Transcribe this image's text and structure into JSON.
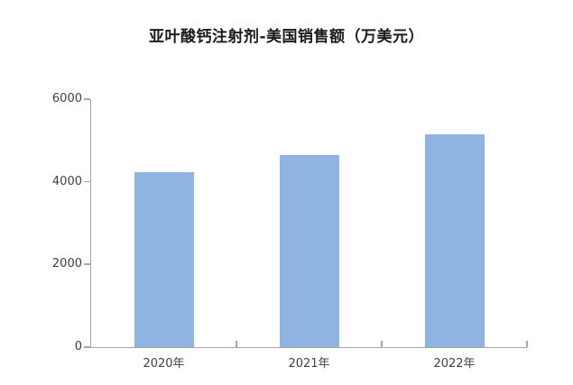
{
  "chart_data": {
    "type": "bar",
    "title": "亚叶酸钙注射剂-美国销售额（万美元）",
    "categories": [
      "2020年",
      "2021年",
      "2022年"
    ],
    "values": [
      4240,
      4640,
      5160
    ],
    "xlabel": "",
    "ylabel": "",
    "ylim": [
      0,
      6000
    ],
    "yticks": [
      0,
      2000,
      4000,
      6000
    ],
    "grid": false,
    "legend": false,
    "colors": {
      "bar": "#8FB4E2",
      "axis": "#A6A6A6",
      "tick_label": "#404040",
      "title": "#1A1A1A",
      "background": "#FFFFFF"
    }
  }
}
